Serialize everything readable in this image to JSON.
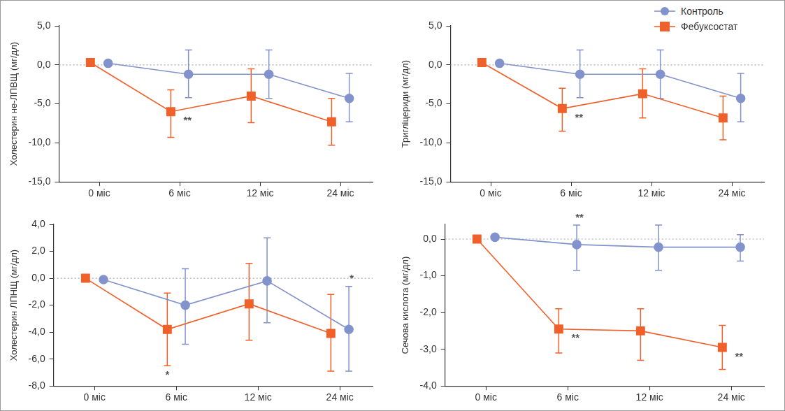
{
  "chart_data": [
    {
      "type": "line",
      "y_label": "Холестерин не-ЛПВЩ (мг/дл)",
      "categories": [
        "0 міс",
        "6 міс",
        "12 міс",
        "24 міс"
      ],
      "ylim": [
        -15,
        5
      ],
      "yticks": [
        {
          "value": -15,
          "label": "-15,0"
        },
        {
          "value": -10,
          "label": "-10,0"
        },
        {
          "value": -5,
          "label": "-5,0"
        },
        {
          "value": 0,
          "label": "0,0"
        },
        {
          "value": 5,
          "label": "5,0"
        }
      ],
      "series": [
        {
          "name": "Контроль",
          "color": "#8292cc",
          "marker": "circle",
          "values": [
            0.2,
            -1.2,
            -1.2,
            -4.3
          ],
          "error_low": [
            null,
            -4.2,
            -4.3,
            -7.3
          ],
          "error_high": [
            null,
            1.9,
            1.9,
            -1.1
          ]
        },
        {
          "name": "Фебуксостат",
          "color": "#f0602a",
          "marker": "square",
          "values": [
            0.3,
            -6.0,
            -4.0,
            -7.3
          ],
          "error_low": [
            null,
            -9.3,
            -7.4,
            -10.3
          ],
          "error_high": [
            null,
            -3.2,
            -0.5,
            -4.3
          ]
        }
      ],
      "annotations": [
        {
          "text": "**",
          "series": "Фебуксостат",
          "category": "6 міс",
          "position": "right"
        }
      ]
    },
    {
      "type": "line",
      "y_label": "Тригліцериди (мг/дл)",
      "categories": [
        "0 міс",
        "6 міс",
        "12 міс",
        "24 міс"
      ],
      "ylim": [
        -15,
        5
      ],
      "yticks": [
        {
          "value": -15,
          "label": "-15,0"
        },
        {
          "value": -10,
          "label": "-10,0"
        },
        {
          "value": -5,
          "label": "-5,0"
        },
        {
          "value": 0,
          "label": "0,0"
        },
        {
          "value": 5,
          "label": "5,0"
        }
      ],
      "legend": "upper right",
      "series": [
        {
          "name": "Контроль",
          "color": "#8292cc",
          "marker": "circle",
          "values": [
            0.2,
            -1.2,
            -1.2,
            -4.3
          ],
          "error_low": [
            null,
            -4.2,
            -4.3,
            -7.3
          ],
          "error_high": [
            null,
            1.9,
            1.9,
            -1.1
          ]
        },
        {
          "name": "Фебуксостат",
          "color": "#f0602a",
          "marker": "square",
          "values": [
            0.3,
            -5.6,
            -3.7,
            -6.8
          ],
          "error_low": [
            null,
            -8.5,
            -6.8,
            -9.6
          ],
          "error_high": [
            null,
            -3.0,
            -0.5,
            -4.0
          ]
        }
      ],
      "annotations": [
        {
          "text": "**",
          "series": "Фебуксостат",
          "category": "6 міс",
          "position": "right"
        }
      ]
    },
    {
      "type": "line",
      "y_label": "Холестерин ЛПНЩ (мг/дл)",
      "categories": [
        "0 міс",
        "6 міс",
        "12 міс",
        "24 міс"
      ],
      "ylim": [
        -8,
        4
      ],
      "yticks": [
        {
          "value": -8,
          "label": "-8,0"
        },
        {
          "value": -6,
          "label": "-6,0"
        },
        {
          "value": -4,
          "label": "-4,0"
        },
        {
          "value": -2,
          "label": "-2,0"
        },
        {
          "value": 0,
          "label": "0,0"
        },
        {
          "value": 2,
          "label": "2,0"
        },
        {
          "value": 4,
          "label": "4,0"
        }
      ],
      "series": [
        {
          "name": "Контроль",
          "color": "#8292cc",
          "marker": "circle",
          "values": [
            -0.1,
            -2.0,
            -0.2,
            -3.8
          ],
          "error_low": [
            null,
            -4.9,
            -3.3,
            -6.9
          ],
          "error_high": [
            null,
            0.7,
            3.0,
            -0.6
          ]
        },
        {
          "name": "Фебуксостат",
          "color": "#f0602a",
          "marker": "square",
          "values": [
            0.0,
            -3.8,
            -1.9,
            -4.1
          ],
          "error_low": [
            null,
            -6.5,
            -4.6,
            -6.9
          ],
          "error_high": [
            null,
            -1.1,
            1.1,
            -1.2
          ]
        }
      ],
      "annotations": [
        {
          "text": "*",
          "series": "Фебуксостат",
          "category": "6 міс",
          "position": "below"
        },
        {
          "text": "*",
          "series": "Контроль",
          "category": "24 міс",
          "position": "above"
        }
      ]
    },
    {
      "type": "line",
      "y_label": "Сечова кислота (мг/дл)",
      "categories": [
        "0 міс",
        "6 міс",
        "12 міс",
        "24 міс"
      ],
      "ylim": [
        -4,
        0.4
      ],
      "yticks": [
        {
          "value": -4,
          "label": "-4,0"
        },
        {
          "value": -3,
          "label": "-3,0"
        },
        {
          "value": -2,
          "label": "-2,0"
        },
        {
          "value": -1,
          "label": "-1,0"
        },
        {
          "value": 0,
          "label": "0,0"
        }
      ],
      "series": [
        {
          "name": "Контроль",
          "color": "#8292cc",
          "marker": "circle",
          "values": [
            0.05,
            -0.15,
            -0.22,
            -0.22
          ],
          "error_low": [
            null,
            -0.85,
            -0.85,
            -0.6
          ],
          "error_high": [
            null,
            0.38,
            0.38,
            0.12
          ]
        },
        {
          "name": "Фебуксостат",
          "color": "#f0602a",
          "marker": "square",
          "values": [
            0.0,
            -2.45,
            -2.5,
            -2.95
          ],
          "error_low": [
            null,
            -3.1,
            -3.3,
            -3.55
          ],
          "error_high": [
            null,
            -1.9,
            -1.9,
            -2.35
          ]
        }
      ],
      "annotations": [
        {
          "text": "**",
          "series": "Контроль",
          "category": "6 міс",
          "position": "above"
        },
        {
          "text": "**",
          "series": "Фебуксостат",
          "category": "6 міс",
          "position": "right"
        },
        {
          "text": "**",
          "series": "Фебуксостат",
          "category": "24 міс",
          "position": "right"
        }
      ]
    }
  ]
}
